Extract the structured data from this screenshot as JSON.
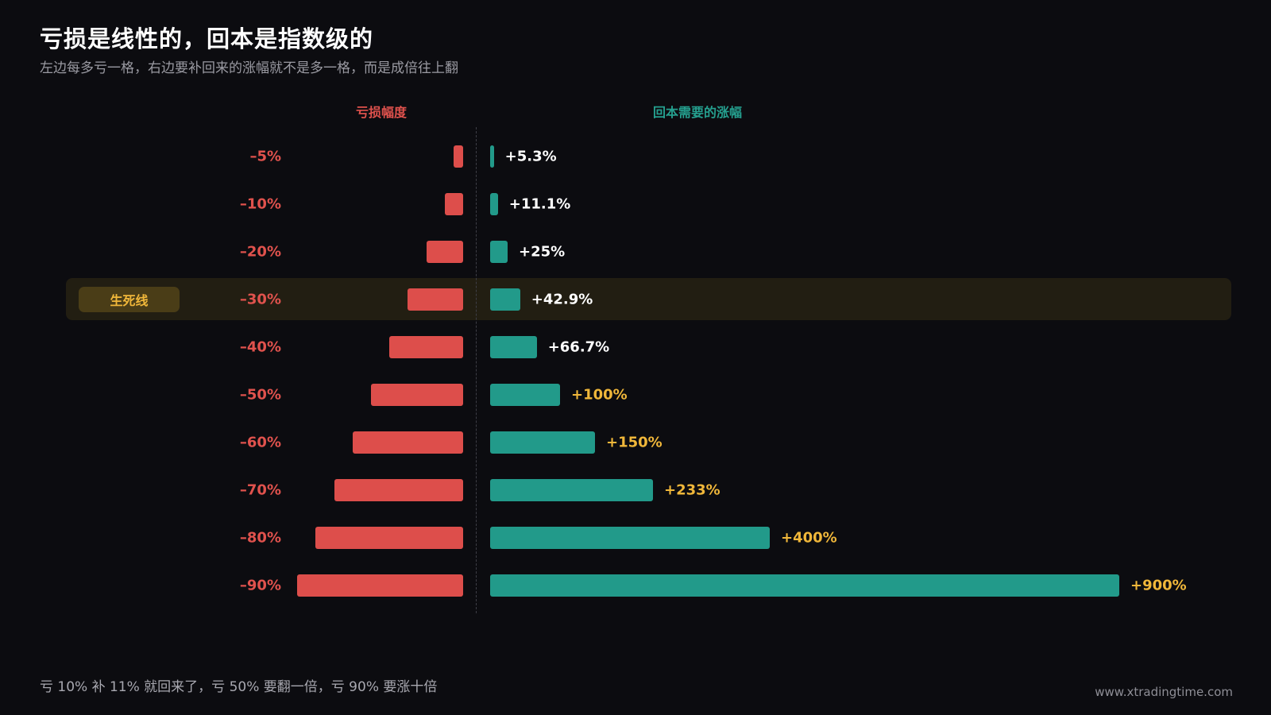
{
  "title": "亏损是线性的，回本是指数级的",
  "subtitle": "左边每多亏一格，右边要补回来的涨幅就不是多一格，而是成倍往上翻",
  "highlight_label": "生死线",
  "footnote": "亏 10% 补 11% 就回来了，亏 50% 要翻一倍，亏 90% 要涨十倍",
  "website": "www.xtradingtime.com",
  "colors": {
    "loss": "#dd4e4b",
    "gain": "#229a8a",
    "gain_label_normal": "#ffffff",
    "gain_label_emphasis": "#f0b73a",
    "highlight": "#f0b73a"
  },
  "chart_data": {
    "type": "bar",
    "orientation": "horizontal-diverging",
    "loss_header": "亏损幅度",
    "gain_header": "回本需要的涨幅",
    "highlighted_category": "–30%",
    "rows": [
      {
        "loss_label": "–5%",
        "loss": 5,
        "gain_label": "+5.3%",
        "gain": 5.3
      },
      {
        "loss_label": "–10%",
        "loss": 10,
        "gain_label": "+11.1%",
        "gain": 11.1
      },
      {
        "loss_label": "–20%",
        "loss": 20,
        "gain_label": "+25%",
        "gain": 25
      },
      {
        "loss_label": "–30%",
        "loss": 30,
        "gain_label": "+42.9%",
        "gain": 42.9
      },
      {
        "loss_label": "–40%",
        "loss": 40,
        "gain_label": "+66.7%",
        "gain": 66.7
      },
      {
        "loss_label": "–50%",
        "loss": 50,
        "gain_label": "+100%",
        "gain": 100
      },
      {
        "loss_label": "–60%",
        "loss": 60,
        "gain_label": "+150%",
        "gain": 150
      },
      {
        "loss_label": "–70%",
        "loss": 70,
        "gain_label": "+233%",
        "gain": 233
      },
      {
        "loss_label": "–80%",
        "loss": 80,
        "gain_label": "+400%",
        "gain": 400
      },
      {
        "loss_label": "–90%",
        "loss": 90,
        "gain_label": "+900%",
        "gain": 900
      }
    ],
    "emphasis_gain_from": 100
  }
}
